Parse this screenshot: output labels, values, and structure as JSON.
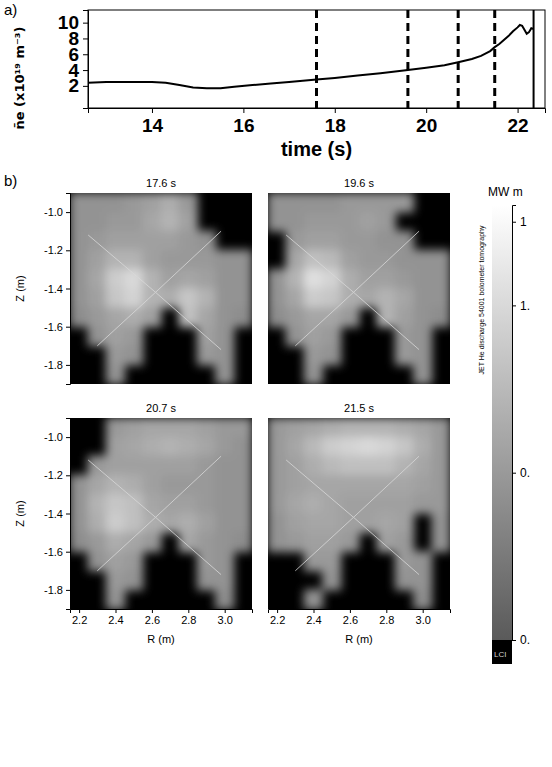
{
  "chart_data": [
    {
      "type": "line",
      "panel": "a)",
      "xlabel": "time (s)",
      "ylabel": "n̄e (x10¹⁹ m⁻³)",
      "color": "#000000",
      "x": [
        12.6,
        13,
        13.5,
        14,
        14.3,
        14.6,
        14.9,
        15.2,
        15.5,
        15.8,
        16.2,
        16.6,
        17,
        17.6,
        18,
        18.5,
        19,
        19.6,
        20,
        20.4,
        20.7,
        21,
        21.2,
        21.4,
        21.5,
        21.6,
        21.7,
        21.8,
        21.9,
        22.0,
        22.05,
        22.1,
        22.15,
        22.2,
        22.25,
        22.3,
        22.35
      ],
      "values": [
        2.4,
        2.5,
        2.5,
        2.5,
        2.4,
        2.1,
        1.8,
        1.7,
        1.7,
        1.9,
        2.1,
        2.3,
        2.5,
        2.8,
        3.0,
        3.3,
        3.6,
        4.0,
        4.3,
        4.6,
        5.0,
        5.4,
        5.8,
        6.4,
        6.9,
        7.3,
        7.8,
        8.3,
        8.9,
        9.4,
        9.7,
        9.6,
        9.1,
        8.6,
        8.8,
        9.3,
        9.2
      ],
      "xlim": [
        12.6,
        22.6
      ],
      "ylim": [
        -0.8,
        11.6
      ],
      "xticks": [
        14,
        16,
        18,
        20,
        22
      ],
      "yticks": [
        2,
        4,
        6,
        8,
        10
      ],
      "time_markers": [
        {
          "x": 17.6,
          "line_style": "dashed"
        },
        {
          "x": 19.6,
          "line_style": "dashed"
        },
        {
          "x": 20.7,
          "line_style": "dashed"
        },
        {
          "x": 21.5,
          "line_style": "dashed"
        },
        {
          "x": 22.35,
          "line_style": "solid"
        }
      ]
    },
    {
      "type": "heatmap",
      "panel": "b)",
      "xlabel": "R (m)",
      "ylabel": "Z (m)",
      "side_text": "JET He discharge 54001 bolometer tomography",
      "xlim": [
        2.15,
        3.15
      ],
      "ylim": [
        -1.9,
        -0.9
      ],
      "xticks": [
        2.2,
        2.4,
        2.6,
        2.8,
        {
          "value": 3,
          "label": "3.0"
        }
      ],
      "yticks": [
        {
          "value": -1,
          "label": "-1.0"
        },
        -1.2,
        -1.4,
        -1.6,
        -1.8
      ],
      "x": [
        2.2,
        2.3,
        2.4,
        2.5,
        2.6,
        2.7,
        2.8,
        2.9,
        3.0,
        3.1
      ],
      "y": [
        -0.95,
        -1.05,
        -1.15,
        -1.25,
        -1.35,
        -1.45,
        -1.55,
        -1.65,
        -1.75,
        -1.85
      ],
      "panels": [
        {
          "title": "17.6 s",
          "cells": [
            [
              0.45,
              0.45,
              0.45,
              0.5,
              0.55,
              0.65,
              0.5,
              null,
              null,
              null
            ],
            [
              0.45,
              0.45,
              0.5,
              0.5,
              0.6,
              0.7,
              0.55,
              null,
              null,
              null
            ],
            [
              0.45,
              0.5,
              0.55,
              0.55,
              0.55,
              0.55,
              0.5,
              0.45,
              null,
              null
            ],
            [
              0.45,
              0.55,
              0.7,
              0.7,
              0.55,
              0.5,
              0.5,
              0.5,
              0.45,
              0.45
            ],
            [
              0.45,
              0.6,
              0.9,
              1.0,
              0.7,
              0.55,
              0.6,
              0.55,
              0.45,
              0.45
            ],
            [
              0.45,
              0.55,
              0.85,
              0.95,
              0.7,
              0.65,
              0.85,
              0.7,
              0.45,
              0.45
            ],
            [
              0.4,
              0.5,
              0.6,
              0.65,
              0.55,
              null,
              0.8,
              0.6,
              0.45,
              0.4
            ],
            [
              null,
              0.45,
              0.55,
              0.5,
              null,
              null,
              null,
              0.55,
              0.45,
              null
            ],
            [
              null,
              null,
              0.5,
              0.45,
              null,
              null,
              null,
              0.5,
              0.45,
              null
            ],
            [
              null,
              null,
              0.45,
              null,
              null,
              null,
              null,
              null,
              0.45,
              null
            ]
          ]
        },
        {
          "title": "19.6 s",
          "cells": [
            [
              0.45,
              0.45,
              0.45,
              0.45,
              0.5,
              0.5,
              0.5,
              0.5,
              null,
              null
            ],
            [
              0.45,
              0.45,
              0.5,
              0.5,
              0.5,
              0.55,
              0.5,
              null,
              null,
              null
            ],
            [
              null,
              0.5,
              0.55,
              0.55,
              0.5,
              0.5,
              0.45,
              0.45,
              null,
              null
            ],
            [
              null,
              0.6,
              0.8,
              0.75,
              0.55,
              0.5,
              0.5,
              0.45,
              0.45,
              0.45
            ],
            [
              0.45,
              0.7,
              1.05,
              0.95,
              0.65,
              0.55,
              0.55,
              0.5,
              0.45,
              0.45
            ],
            [
              0.45,
              0.6,
              0.9,
              0.85,
              0.65,
              0.6,
              0.7,
              0.6,
              0.45,
              0.45
            ],
            [
              0.4,
              0.5,
              0.6,
              0.6,
              0.5,
              null,
              0.7,
              0.55,
              0.45,
              0.4
            ],
            [
              null,
              0.45,
              0.55,
              0.5,
              null,
              null,
              null,
              0.5,
              0.45,
              null
            ],
            [
              null,
              null,
              0.5,
              0.45,
              null,
              null,
              null,
              0.5,
              0.45,
              null
            ],
            [
              null,
              null,
              0.45,
              null,
              null,
              null,
              null,
              null,
              0.45,
              null
            ]
          ]
        },
        {
          "title": "20.7 s",
          "cells": [
            [
              null,
              null,
              0.5,
              0.55,
              0.6,
              0.6,
              0.6,
              0.55,
              0.5,
              0.5
            ],
            [
              null,
              null,
              0.55,
              0.6,
              0.65,
              0.7,
              0.65,
              0.6,
              0.5,
              0.45
            ],
            [
              null,
              0.5,
              0.55,
              0.55,
              0.55,
              0.55,
              0.55,
              0.5,
              0.45,
              0.45
            ],
            [
              0.45,
              0.6,
              0.7,
              0.65,
              0.55,
              0.5,
              0.5,
              0.5,
              0.45,
              0.45
            ],
            [
              0.45,
              0.7,
              0.85,
              0.8,
              0.6,
              0.55,
              0.55,
              0.5,
              0.45,
              0.45
            ],
            [
              0.45,
              0.65,
              0.9,
              0.8,
              0.65,
              0.6,
              0.65,
              0.55,
              0.45,
              0.45
            ],
            [
              0.4,
              0.5,
              0.65,
              0.6,
              0.5,
              null,
              0.6,
              0.5,
              0.45,
              0.4
            ],
            [
              null,
              0.45,
              0.55,
              0.5,
              null,
              null,
              null,
              0.5,
              0.45,
              null
            ],
            [
              null,
              null,
              0.5,
              0.45,
              null,
              null,
              null,
              0.45,
              0.45,
              null
            ],
            [
              null,
              null,
              0.45,
              null,
              null,
              null,
              null,
              null,
              0.4,
              null
            ]
          ]
        },
        {
          "title": "21.5 s",
          "cells": [
            [
              0.5,
              0.55,
              0.6,
              0.65,
              0.7,
              0.7,
              0.7,
              0.65,
              0.6,
              0.5
            ],
            [
              0.5,
              0.6,
              0.75,
              0.9,
              0.95,
              1.0,
              0.95,
              0.85,
              0.65,
              0.5
            ],
            [
              0.5,
              0.55,
              0.65,
              0.75,
              0.8,
              0.8,
              0.8,
              0.7,
              0.6,
              0.5
            ],
            [
              0.5,
              0.55,
              0.6,
              0.6,
              0.6,
              0.6,
              0.6,
              0.6,
              0.55,
              0.5
            ],
            [
              0.5,
              0.6,
              0.65,
              0.6,
              0.55,
              0.55,
              0.55,
              0.55,
              0.5,
              0.5
            ],
            [
              0.45,
              0.55,
              0.6,
              0.6,
              0.55,
              0.55,
              0.6,
              0.55,
              null,
              0.45
            ],
            [
              0.45,
              0.5,
              0.55,
              0.55,
              0.5,
              null,
              0.55,
              0.5,
              null,
              0.45
            ],
            [
              null,
              null,
              0.5,
              0.5,
              null,
              null,
              null,
              0.5,
              0.45,
              null
            ],
            [
              null,
              null,
              null,
              0.45,
              null,
              null,
              null,
              0.45,
              0.45,
              null
            ],
            [
              null,
              null,
              0.45,
              null,
              null,
              null,
              null,
              null,
              0.4,
              null
            ]
          ]
        }
      ],
      "colorbar": {
        "title": "MW m",
        "range": [
          0,
          1.3
        ],
        "ticks": [
          {
            "value": 1.25,
            "label": "1"
          },
          {
            "value": 1.0,
            "label": "1."
          },
          {
            "value": 0.5,
            "label": "0."
          },
          {
            "value": 0.0,
            "label": "0."
          }
        ],
        "below_label": "LCI"
      }
    }
  ]
}
